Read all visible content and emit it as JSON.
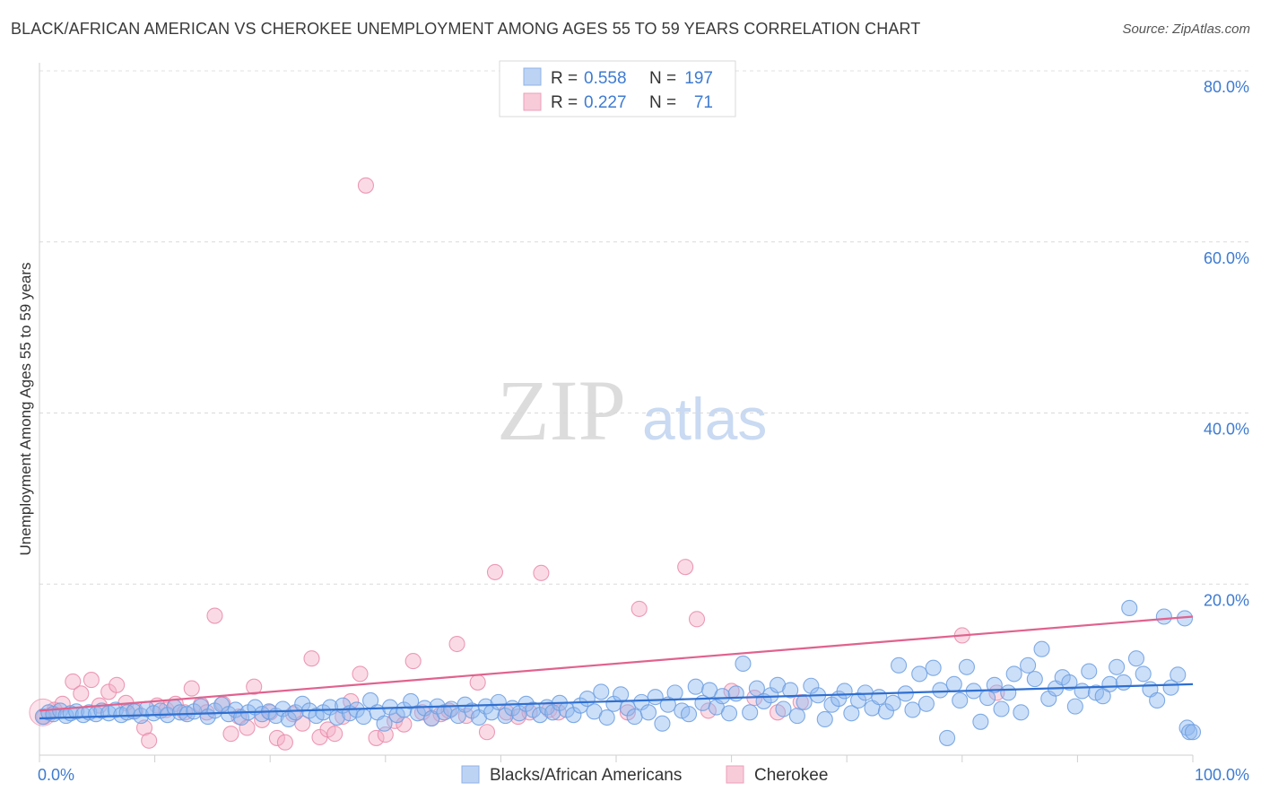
{
  "chart_data": {
    "type": "scatter",
    "title": "BLACK/AFRICAN AMERICAN VS CHEROKEE UNEMPLOYMENT AMONG AGES 55 TO 59 YEARS CORRELATION CHART",
    "source": "Source: ZipAtlas.com",
    "ylabel": "Unemployment Among Ages 55 to 59 years",
    "xlabel": "",
    "xlim": [
      0,
      100
    ],
    "ylim": [
      0,
      80
    ],
    "x_tick_labels": [
      "0.0%",
      "100.0%"
    ],
    "y_tick_labels": [
      "20.0%",
      "40.0%",
      "60.0%",
      "80.0%"
    ],
    "y_ticks": [
      20,
      40,
      60,
      80
    ],
    "grid": true,
    "watermark": {
      "zip": "ZIP",
      "atlas": "atlas"
    },
    "legend_stats": [
      {
        "r_label": "R =",
        "r_value": "0.558",
        "n_label": "N =",
        "n_value": "197"
      },
      {
        "r_label": "R =",
        "r_value": "0.227",
        "n_label": "N =",
        "n_value": "71"
      }
    ],
    "series": [
      {
        "name": "Blacks/African Americans",
        "color": "#8fb8ef",
        "edge": "#6b9de0",
        "trend_color": "#2f6fd0",
        "trend": [
          [
            0,
            4.3
          ],
          [
            100,
            8.3
          ]
        ],
        "points": [
          [
            0.3,
            4.5
          ],
          [
            0.8,
            5.0
          ],
          [
            1.2,
            4.8
          ],
          [
            1.8,
            5.2
          ],
          [
            2.3,
            4.6
          ],
          [
            2.7,
            4.9
          ],
          [
            3.2,
            5.1
          ],
          [
            3.8,
            4.7
          ],
          [
            4.3,
            5.0
          ],
          [
            4.9,
            4.8
          ],
          [
            5.4,
            5.2
          ],
          [
            6.0,
            4.9
          ],
          [
            6.6,
            5.3
          ],
          [
            7.1,
            4.7
          ],
          [
            7.6,
            5.0
          ],
          [
            8.2,
            5.1
          ],
          [
            8.8,
            4.6
          ],
          [
            9.3,
            5.4
          ],
          [
            9.9,
            4.9
          ],
          [
            10.5,
            5.2
          ],
          [
            11.1,
            4.7
          ],
          [
            11.7,
            5.6
          ],
          [
            12.2,
            5.0
          ],
          [
            12.8,
            4.8
          ],
          [
            13.4,
            5.1
          ],
          [
            14.0,
            5.7
          ],
          [
            14.6,
            4.5
          ],
          [
            15.2,
            5.2
          ],
          [
            15.8,
            5.9
          ],
          [
            16.4,
            4.8
          ],
          [
            17.0,
            5.3
          ],
          [
            17.5,
            4.4
          ],
          [
            18.1,
            5.0
          ],
          [
            18.7,
            5.6
          ],
          [
            19.3,
            4.8
          ],
          [
            19.9,
            5.1
          ],
          [
            20.5,
            4.6
          ],
          [
            21.1,
            5.4
          ],
          [
            21.6,
            4.2
          ],
          [
            22.2,
            5.0
          ],
          [
            22.8,
            6.0
          ],
          [
            23.4,
            5.2
          ],
          [
            24.0,
            4.6
          ],
          [
            24.6,
            5.0
          ],
          [
            25.2,
            5.6
          ],
          [
            25.8,
            4.4
          ],
          [
            26.3,
            5.8
          ],
          [
            26.9,
            4.9
          ],
          [
            27.5,
            5.3
          ],
          [
            28.1,
            4.5
          ],
          [
            28.7,
            6.4
          ],
          [
            29.3,
            5.0
          ],
          [
            29.9,
            3.7
          ],
          [
            30.4,
            5.6
          ],
          [
            31.0,
            4.7
          ],
          [
            31.6,
            5.3
          ],
          [
            32.2,
            6.3
          ],
          [
            32.8,
            4.9
          ],
          [
            33.4,
            5.5
          ],
          [
            34.0,
            4.3
          ],
          [
            34.5,
            5.7
          ],
          [
            35.1,
            5.0
          ],
          [
            35.7,
            5.4
          ],
          [
            36.3,
            4.6
          ],
          [
            36.9,
            5.9
          ],
          [
            37.5,
            5.2
          ],
          [
            38.1,
            4.4
          ],
          [
            38.7,
            5.7
          ],
          [
            39.2,
            5.0
          ],
          [
            39.8,
            6.2
          ],
          [
            40.4,
            4.6
          ],
          [
            41.0,
            5.5
          ],
          [
            41.6,
            4.9
          ],
          [
            42.2,
            6.0
          ],
          [
            42.8,
            5.3
          ],
          [
            43.4,
            4.7
          ],
          [
            44.0,
            5.6
          ],
          [
            44.5,
            5.0
          ],
          [
            45.1,
            6.1
          ],
          [
            45.7,
            5.3
          ],
          [
            46.3,
            4.7
          ],
          [
            46.9,
            5.8
          ],
          [
            47.5,
            6.6
          ],
          [
            48.1,
            5.1
          ],
          [
            48.7,
            7.4
          ],
          [
            49.2,
            4.4
          ],
          [
            49.8,
            6.0
          ],
          [
            50.4,
            7.1
          ],
          [
            51.0,
            5.5
          ],
          [
            51.6,
            4.5
          ],
          [
            52.2,
            6.2
          ],
          [
            52.8,
            5.0
          ],
          [
            53.4,
            6.8
          ],
          [
            54.0,
            3.7
          ],
          [
            54.5,
            5.9
          ],
          [
            55.1,
            7.3
          ],
          [
            55.7,
            5.2
          ],
          [
            56.3,
            4.8
          ],
          [
            56.9,
            8.0
          ],
          [
            57.5,
            6.1
          ],
          [
            58.1,
            7.6
          ],
          [
            58.7,
            5.6
          ],
          [
            59.2,
            6.9
          ],
          [
            59.8,
            4.9
          ],
          [
            60.4,
            7.2
          ],
          [
            61.0,
            10.7
          ],
          [
            61.6,
            5.0
          ],
          [
            62.2,
            7.8
          ],
          [
            62.8,
            6.3
          ],
          [
            63.4,
            7.0
          ],
          [
            64.0,
            8.2
          ],
          [
            64.5,
            5.4
          ],
          [
            65.1,
            7.6
          ],
          [
            65.7,
            4.6
          ],
          [
            66.3,
            6.2
          ],
          [
            66.9,
            8.1
          ],
          [
            67.5,
            7.0
          ],
          [
            68.1,
            4.2
          ],
          [
            68.7,
            5.9
          ],
          [
            69.3,
            6.6
          ],
          [
            69.8,
            7.5
          ],
          [
            70.4,
            4.9
          ],
          [
            71.0,
            6.4
          ],
          [
            71.6,
            7.3
          ],
          [
            72.2,
            5.5
          ],
          [
            72.8,
            6.8
          ],
          [
            73.4,
            5.1
          ],
          [
            74.0,
            6.1
          ],
          [
            74.5,
            10.5
          ],
          [
            75.1,
            7.2
          ],
          [
            75.7,
            5.3
          ],
          [
            76.3,
            9.5
          ],
          [
            76.9,
            6.0
          ],
          [
            77.5,
            10.2
          ],
          [
            78.1,
            7.6
          ],
          [
            78.7,
            2.0
          ],
          [
            79.3,
            8.3
          ],
          [
            79.8,
            6.4
          ],
          [
            80.4,
            10.3
          ],
          [
            81.0,
            7.5
          ],
          [
            81.6,
            3.9
          ],
          [
            82.2,
            6.7
          ],
          [
            82.8,
            8.2
          ],
          [
            83.4,
            5.4
          ],
          [
            84.0,
            7.3
          ],
          [
            84.5,
            9.5
          ],
          [
            85.1,
            5.0
          ],
          [
            85.7,
            10.5
          ],
          [
            86.3,
            8.9
          ],
          [
            86.9,
            12.4
          ],
          [
            87.5,
            6.6
          ],
          [
            88.1,
            7.8
          ],
          [
            88.7,
            9.1
          ],
          [
            89.3,
            8.5
          ],
          [
            89.8,
            5.7
          ],
          [
            90.4,
            7.5
          ],
          [
            91.0,
            9.8
          ],
          [
            91.6,
            7.3
          ],
          [
            92.2,
            6.9
          ],
          [
            92.8,
            8.3
          ],
          [
            93.4,
            10.3
          ],
          [
            94.0,
            8.5
          ],
          [
            94.5,
            17.2
          ],
          [
            95.1,
            11.3
          ],
          [
            95.7,
            9.5
          ],
          [
            96.3,
            7.7
          ],
          [
            96.9,
            6.4
          ],
          [
            97.5,
            16.2
          ],
          [
            98.1,
            7.9
          ],
          [
            98.7,
            9.4
          ],
          [
            99.3,
            16.0
          ],
          [
            99.5,
            3.2
          ],
          [
            99.7,
            2.7
          ],
          [
            100.0,
            2.7
          ]
        ]
      },
      {
        "name": "Cherokee",
        "color": "#f5afc6",
        "edge": "#e98aaa",
        "trend_color": "#e0628e",
        "trend": [
          [
            0,
            5.2
          ],
          [
            100,
            16.2
          ]
        ],
        "points": [
          [
            0.4,
            4.5
          ],
          [
            1.3,
            5.3
          ],
          [
            2.0,
            6.0
          ],
          [
            2.9,
            8.6
          ],
          [
            3.6,
            7.2
          ],
          [
            4.5,
            8.8
          ],
          [
            5.2,
            5.8
          ],
          [
            6.0,
            7.4
          ],
          [
            6.7,
            8.2
          ],
          [
            7.5,
            6.1
          ],
          [
            8.3,
            5.2
          ],
          [
            9.1,
            3.2
          ],
          [
            9.5,
            1.7
          ],
          [
            10.2,
            5.8
          ],
          [
            11.0,
            5.3
          ],
          [
            11.8,
            6.0
          ],
          [
            12.6,
            5.0
          ],
          [
            13.2,
            7.8
          ],
          [
            14.0,
            5.9
          ],
          [
            14.5,
            5.0
          ],
          [
            15.2,
            16.3
          ],
          [
            15.9,
            6.0
          ],
          [
            16.6,
            2.5
          ],
          [
            17.3,
            4.5
          ],
          [
            18.0,
            3.2
          ],
          [
            18.6,
            8.0
          ],
          [
            19.3,
            4.1
          ],
          [
            20.0,
            5.0
          ],
          [
            20.6,
            2.0
          ],
          [
            21.3,
            1.5
          ],
          [
            22.0,
            4.8
          ],
          [
            22.8,
            3.7
          ],
          [
            23.6,
            11.3
          ],
          [
            24.3,
            2.1
          ],
          [
            25.0,
            3.0
          ],
          [
            25.6,
            2.5
          ],
          [
            26.3,
            4.5
          ],
          [
            27.0,
            6.3
          ],
          [
            27.8,
            9.5
          ],
          [
            28.3,
            66.6
          ],
          [
            29.2,
            2.0
          ],
          [
            30.0,
            2.4
          ],
          [
            30.8,
            4.0
          ],
          [
            31.6,
            3.6
          ],
          [
            32.4,
            11.0
          ],
          [
            33.2,
            5.0
          ],
          [
            34.0,
            4.3
          ],
          [
            34.8,
            4.8
          ],
          [
            35.5,
            5.2
          ],
          [
            36.2,
            13.0
          ],
          [
            37.0,
            4.6
          ],
          [
            38.0,
            8.5
          ],
          [
            38.8,
            2.7
          ],
          [
            39.5,
            21.4
          ],
          [
            40.5,
            5.0
          ],
          [
            41.5,
            4.5
          ],
          [
            42.5,
            5.0
          ],
          [
            43.5,
            21.3
          ],
          [
            44.2,
            5.3
          ],
          [
            45.0,
            5.0
          ],
          [
            51.0,
            5.0
          ],
          [
            52.0,
            17.1
          ],
          [
            56.0,
            22.0
          ],
          [
            57.0,
            15.9
          ],
          [
            58.0,
            5.2
          ],
          [
            60.0,
            7.5
          ],
          [
            62.0,
            6.7
          ],
          [
            64.0,
            5.0
          ],
          [
            66.0,
            6.2
          ],
          [
            80.0,
            14.0
          ],
          [
            83.0,
            7.3
          ]
        ]
      }
    ]
  }
}
